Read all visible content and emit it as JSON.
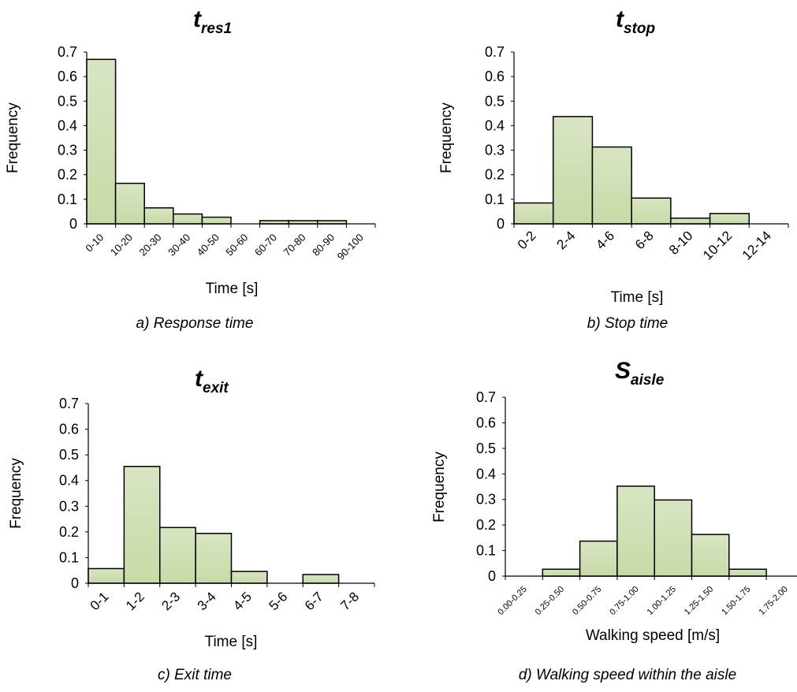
{
  "colors": {
    "bar_fill": "#d6e3c0",
    "bar_fill_bottom": "#c5d9a3",
    "bar_stroke": "#000000",
    "axis": "#000000"
  },
  "chart_data": [
    {
      "type": "bar",
      "title": "t",
      "title_subscript": "res1",
      "caption": "a) Response time",
      "xlabel": "Time [s]",
      "ylabel": "Frequency",
      "ylim": [
        0,
        0.7
      ],
      "yticks": [
        "0",
        "0.1",
        "0.2",
        "0.3",
        "0.4",
        "0.5",
        "0.6",
        "0.7"
      ],
      "grid": false,
      "legend": "none",
      "categories": [
        "0-10",
        "10-20",
        "20-30",
        "30-40",
        "40-50",
        "50-60",
        "60-70",
        "70-80",
        "80-90",
        "90-100"
      ],
      "values": [
        0.67,
        0.165,
        0.065,
        0.04,
        0.027,
        0,
        0.013,
        0.013,
        0.013,
        0
      ]
    },
    {
      "type": "bar",
      "title": "t",
      "title_subscript": "stop",
      "caption": "b) Stop time",
      "xlabel": "Time [s]",
      "ylabel": "Frequency",
      "ylim": [
        0,
        0.7
      ],
      "yticks": [
        "0",
        "0.1",
        "0.2",
        "0.3",
        "0.4",
        "0.5",
        "0.6",
        "0.7"
      ],
      "grid": false,
      "legend": "none",
      "categories": [
        "0-2",
        "2-4",
        "4-6",
        "6-8",
        "8-10",
        "10-12",
        "12-14"
      ],
      "values": [
        0.085,
        0.437,
        0.313,
        0.105,
        0.023,
        0.042,
        0
      ]
    },
    {
      "type": "bar",
      "title": "t",
      "title_subscript": "exit",
      "caption": "c) Exit time",
      "xlabel": "Time [s]",
      "ylabel": "Frequency",
      "ylim": [
        0,
        0.7
      ],
      "yticks": [
        "0",
        "0.1",
        "0.2",
        "0.3",
        "0.4",
        "0.5",
        "0.6",
        "0.7"
      ],
      "grid": false,
      "legend": "none",
      "categories": [
        "0-1",
        "1-2",
        "2-3",
        "3-4",
        "4-5",
        "5-6",
        "6-7",
        "7-8"
      ],
      "values": [
        0.057,
        0.455,
        0.217,
        0.194,
        0.046,
        0,
        0.034,
        0
      ]
    },
    {
      "type": "bar",
      "title": "S",
      "title_subscript": "aisle",
      "caption": "d) Walking speed within the aisle",
      "xlabel": "Walking speed [m/s]",
      "ylabel": "Frequency",
      "ylim": [
        0,
        0.7
      ],
      "yticks": [
        "0",
        "0.1",
        "0.2",
        "0.3",
        "0.4",
        "0.5",
        "0.6",
        "0.7"
      ],
      "grid": false,
      "legend": "none",
      "categories": [
        "0.00-0.25",
        "0.25-0.50",
        "0.50-0.75",
        "0.75-1.00",
        "1.00-1.25",
        "1.25-1.50",
        "1.50-1.75",
        "1.75-2.00"
      ],
      "values": [
        0,
        0.027,
        0.137,
        0.352,
        0.298,
        0.163,
        0.027,
        0
      ]
    }
  ]
}
